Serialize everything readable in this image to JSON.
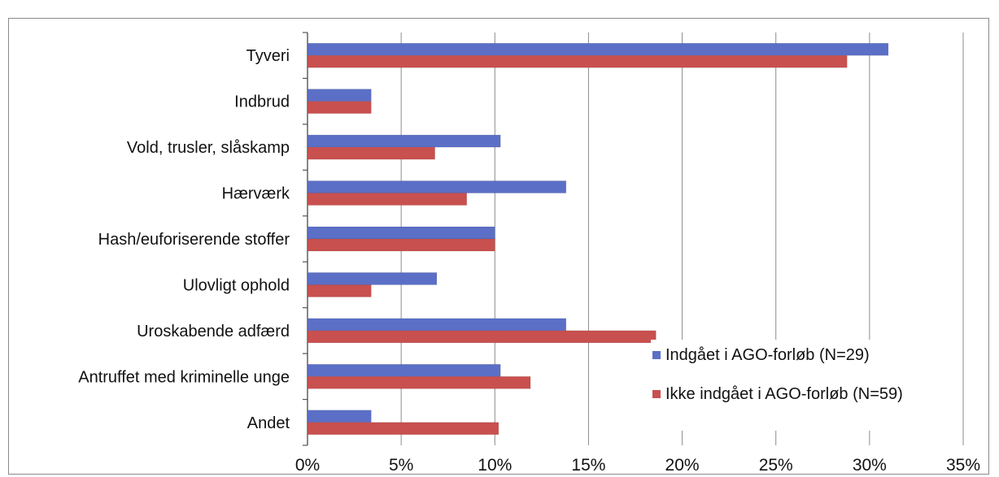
{
  "chart_data": {
    "type": "bar",
    "orientation": "horizontal",
    "categories": [
      "Tyveri",
      "Indbrud",
      "Vold, trusler, slåskamp",
      "Hærværk",
      "Hash/euforiserende stoffer",
      "Ulovligt ophold",
      "Uroskabende adfærd",
      "Antruffet med kriminelle unge",
      "Andet"
    ],
    "series": [
      {
        "name": "Indgået i AGO-forløb (N=29)",
        "color": "#5b6fc6",
        "values": [
          31.0,
          3.4,
          10.3,
          13.8,
          10.0,
          6.9,
          13.8,
          10.3,
          3.4
        ]
      },
      {
        "name": "Ikke indgået i AGO-forløb (N=59)",
        "color": "#c8504f",
        "values": [
          28.8,
          3.4,
          6.8,
          8.5,
          10.0,
          3.4,
          18.6,
          11.9,
          10.2
        ]
      }
    ],
    "xlim": [
      0,
      35
    ],
    "xticks": [
      0,
      5,
      10,
      15,
      20,
      25,
      30,
      35
    ],
    "xtick_labels": [
      "0%",
      "5%",
      "10%",
      "15%",
      "20%",
      "25%",
      "30%",
      "35%"
    ],
    "grid": "vertical",
    "legend_position": "bottom-right"
  }
}
